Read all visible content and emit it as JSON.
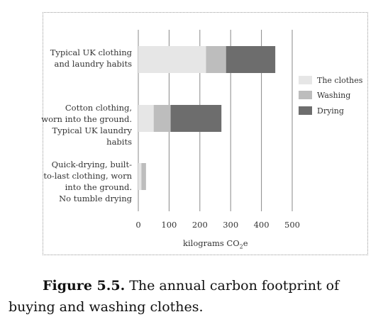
{
  "chart_data": {
    "type": "bar",
    "orientation": "horizontal",
    "stacked": true,
    "categories": [
      "Typical UK clothing and laundry habits",
      "Cotton clothing, worn into the ground. Typical UK laundry habits",
      "Quick-drying, built-to-last clothing, worn into the ground. No tumble drying"
    ],
    "category_lines": [
      [
        "Typical UK clothing",
        "and laundry habits"
      ],
      [
        "Cotton clothing,",
        "worn into the ground.",
        "Typical UK laundry",
        "habits"
      ],
      [
        "Quick-drying, built-",
        "to-last clothing, worn",
        "into the ground.",
        "No tumble drying"
      ]
    ],
    "series": [
      {
        "name": "The clothes",
        "values": [
          220,
          50,
          10
        ],
        "color": "#e6e6e6"
      },
      {
        "name": "Washing",
        "values": [
          65,
          55,
          15
        ],
        "color": "#bdbdbd"
      },
      {
        "name": "Drying",
        "values": [
          160,
          165,
          0
        ],
        "color": "#6d6d6d"
      }
    ],
    "xlabel_main": "kilograms CO",
    "xlabel_sub": "2",
    "xlabel_tail": "e",
    "xlim": [
      0,
      500
    ],
    "xticks": [
      0,
      100,
      200,
      300,
      400,
      500
    ],
    "grid": true,
    "legend_position": "right"
  },
  "caption": {
    "label": "Figure 5.5.",
    "text": " The annual carbon footprint of buying and washing clothes."
  }
}
